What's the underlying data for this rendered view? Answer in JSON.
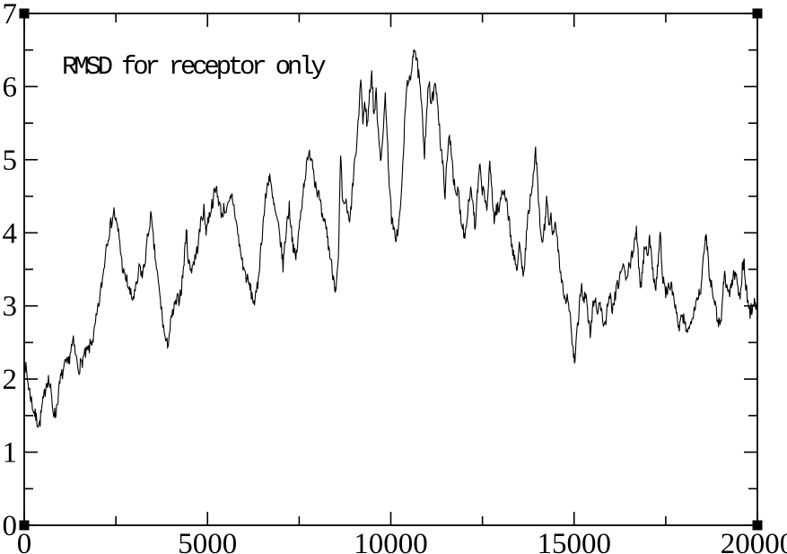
{
  "window": {
    "background": "#ffffff"
  },
  "chart_data": {
    "type": "line",
    "title": "",
    "annotation": "RMSD for receptor only",
    "xlabel": "",
    "ylabel": "",
    "xlim": [
      0,
      20000
    ],
    "ylim": [
      0,
      7
    ],
    "grid": false,
    "legend": null,
    "axes_mirrored_ticks_inward": true,
    "x_major_ticks": [
      0,
      5000,
      10000,
      15000,
      20000
    ],
    "x_minor_ticks": [
      2500,
      7500,
      12500,
      17500
    ],
    "x_tick_labels": [
      "0",
      "5000",
      "10000",
      "15000",
      "20000"
    ],
    "y_major_ticks": [
      0,
      1,
      2,
      3,
      4,
      5,
      6,
      7
    ],
    "y_minor_ticks": [
      0.5,
      1.5,
      2.5,
      3.5,
      4.5,
      5.5,
      6.5
    ],
    "y_tick_labels": [
      "0",
      "1",
      "2",
      "3",
      "4",
      "5",
      "6",
      "7"
    ],
    "colors": {
      "line": "#000000",
      "axis": "#000000",
      "text": "#000000",
      "handle": "#000000"
    },
    "render_noise": {
      "amplitude": 0.1,
      "points_per_segment": 4,
      "seed": 7
    },
    "series": [
      {
        "name": "rmsd",
        "color": "#000000",
        "x": [
          0,
          60,
          120,
          180,
          240,
          300,
          360,
          420,
          480,
          540,
          600,
          660,
          720,
          780,
          850,
          920,
          990,
          1060,
          1130,
          1200,
          1270,
          1340,
          1410,
          1480,
          1550,
          1620,
          1690,
          1760,
          1830,
          1900,
          1960,
          2030,
          2100,
          2170,
          2240,
          2310,
          2380,
          2450,
          2520,
          2590,
          2660,
          2730,
          2800,
          2870,
          2940,
          3010,
          3080,
          3150,
          3220,
          3290,
          3360,
          3450,
          3520,
          3590,
          3660,
          3730,
          3800,
          3880,
          3940,
          4010,
          4080,
          4150,
          4220,
          4290,
          4360,
          4420,
          4480,
          4550,
          4620,
          4690,
          4760,
          4830,
          4900,
          4960,
          5030,
          5100,
          5170,
          5250,
          5320,
          5390,
          5460,
          5530,
          5600,
          5670,
          5740,
          5810,
          5880,
          5950,
          6020,
          6090,
          6160,
          6230,
          6300,
          6370,
          6440,
          6510,
          6580,
          6650,
          6700,
          6760,
          6820,
          6880,
          6940,
          7000,
          7060,
          7120,
          7180,
          7230,
          7290,
          7350,
          7410,
          7470,
          7530,
          7590,
          7650,
          7720,
          7800,
          7860,
          7920,
          7980,
          8040,
          8100,
          8160,
          8220,
          8280,
          8340,
          8400,
          8470,
          8510,
          8570,
          8630,
          8690,
          8750,
          8810,
          8875,
          8940,
          9000,
          9080,
          9180,
          9240,
          9300,
          9360,
          9420,
          9480,
          9540,
          9600,
          9660,
          9720,
          9780,
          9850,
          9900,
          9960,
          10020,
          10080,
          10150,
          10220,
          10300,
          10360,
          10420,
          10480,
          10540,
          10600,
          10650,
          10700,
          10760,
          10820,
          10880,
          10920,
          10980,
          11040,
          11100,
          11160,
          11240,
          11300,
          11360,
          11420,
          11480,
          11540,
          11600,
          11660,
          11720,
          11780,
          11840,
          11900,
          11960,
          12020,
          12100,
          12180,
          12250,
          12300,
          12360,
          12420,
          12480,
          12550,
          12620,
          12700,
          12760,
          12820,
          12880,
          12950,
          13030,
          13100,
          13170,
          13240,
          13310,
          13380,
          13450,
          13520,
          13580,
          13640,
          13700,
          13770,
          13840,
          13900,
          13950,
          14010,
          14070,
          14130,
          14200,
          14250,
          14310,
          14370,
          14430,
          14500,
          14560,
          14620,
          14690,
          14760,
          14830,
          14900,
          14960,
          15010,
          15070,
          15130,
          15190,
          15260,
          15320,
          15380,
          15440,
          15500,
          15570,
          15640,
          15710,
          15780,
          15850,
          15920,
          15990,
          16060,
          16130,
          16200,
          16270,
          16340,
          16410,
          16520,
          16590,
          16660,
          16700,
          16760,
          16820,
          16880,
          16940,
          17000,
          17060,
          17120,
          17180,
          17230,
          17290,
          17350,
          17410,
          17470,
          17530,
          17590,
          17650,
          17710,
          17770,
          17840,
          17900,
          17960,
          18020,
          18080,
          18140,
          18200,
          18260,
          18320,
          18380,
          18440,
          18500,
          18560,
          18600,
          18650,
          18700,
          18760,
          18820,
          18880,
          18940,
          19000,
          19060,
          19110,
          19170,
          19230,
          19290,
          19350,
          19410,
          19470,
          19530,
          19590,
          19640,
          19680,
          19740,
          19800,
          19860,
          19920,
          20000
        ],
        "y": [
          2.25,
          2.1,
          1.9,
          1.75,
          1.6,
          1.5,
          1.42,
          1.38,
          1.6,
          1.75,
          1.95,
          2.0,
          1.85,
          1.6,
          1.5,
          1.75,
          2.0,
          2.1,
          2.2,
          2.2,
          2.4,
          2.5,
          2.3,
          2.15,
          2.2,
          2.3,
          2.35,
          2.4,
          2.5,
          2.6,
          2.8,
          3.0,
          3.25,
          3.5,
          3.85,
          4.0,
          4.15,
          4.3,
          4.1,
          3.95,
          3.6,
          3.4,
          3.35,
          3.2,
          3.1,
          3.15,
          3.3,
          3.55,
          3.4,
          3.6,
          3.9,
          4.25,
          3.9,
          3.6,
          3.3,
          3.0,
          2.7,
          2.45,
          2.55,
          2.8,
          2.95,
          3.05,
          3.1,
          3.25,
          3.6,
          4.05,
          3.6,
          3.5,
          3.6,
          3.7,
          3.9,
          4.2,
          4.3,
          4.05,
          4.2,
          4.35,
          4.5,
          4.6,
          4.4,
          4.25,
          4.35,
          4.3,
          4.4,
          4.5,
          4.3,
          4.05,
          3.8,
          3.6,
          3.45,
          3.35,
          3.25,
          3.1,
          3.05,
          3.3,
          3.7,
          4.1,
          4.45,
          4.7,
          4.8,
          4.5,
          4.35,
          4.2,
          4.05,
          3.85,
          3.55,
          3.9,
          4.2,
          4.35,
          4.05,
          3.75,
          3.65,
          3.9,
          4.2,
          4.5,
          4.75,
          4.95,
          5.1,
          5.0,
          4.75,
          4.6,
          4.5,
          4.3,
          4.1,
          4.15,
          3.9,
          3.7,
          3.5,
          3.3,
          3.25,
          3.6,
          5.05,
          4.35,
          4.45,
          4.3,
          4.1,
          4.5,
          4.9,
          5.2,
          6.15,
          5.5,
          5.8,
          5.45,
          5.9,
          6.2,
          5.6,
          5.9,
          5.4,
          5.05,
          5.2,
          5.95,
          5.3,
          4.7,
          4.2,
          4.0,
          3.95,
          4.1,
          4.6,
          5.3,
          5.9,
          6.15,
          6.0,
          6.45,
          6.57,
          6.35,
          6.15,
          5.85,
          5.4,
          5.1,
          5.7,
          6.05,
          5.75,
          5.9,
          6.0,
          5.65,
          5.2,
          4.9,
          4.55,
          5.0,
          5.35,
          5.1,
          4.7,
          4.45,
          4.6,
          4.25,
          4.1,
          3.95,
          4.35,
          4.6,
          4.4,
          4.0,
          4.5,
          4.9,
          4.65,
          4.5,
          4.35,
          4.9,
          4.6,
          4.15,
          4.35,
          4.3,
          4.55,
          4.6,
          4.4,
          4.1,
          3.8,
          3.6,
          3.5,
          3.9,
          3.6,
          3.4,
          4.0,
          4.35,
          4.5,
          4.8,
          5.15,
          4.6,
          4.1,
          3.85,
          4.1,
          4.5,
          4.05,
          4.2,
          3.95,
          4.1,
          3.85,
          3.5,
          3.3,
          3.05,
          3.15,
          2.8,
          2.45,
          2.2,
          2.55,
          2.9,
          3.3,
          3.1,
          3.15,
          2.85,
          2.6,
          2.95,
          3.1,
          2.95,
          3.05,
          2.8,
          2.75,
          3.0,
          3.1,
          2.95,
          3.15,
          3.3,
          3.45,
          3.55,
          3.35,
          3.55,
          3.7,
          3.95,
          4.0,
          3.6,
          3.25,
          3.6,
          3.85,
          3.75,
          3.9,
          3.6,
          3.4,
          3.25,
          3.6,
          4.0,
          3.4,
          3.25,
          3.15,
          3.3,
          3.25,
          3.15,
          2.95,
          2.7,
          2.75,
          2.85,
          2.75,
          2.7,
          2.65,
          2.85,
          2.95,
          3.05,
          3.15,
          3.2,
          3.45,
          3.8,
          4.0,
          3.7,
          3.4,
          3.25,
          3.15,
          2.9,
          2.8,
          2.75,
          3.2,
          3.45,
          3.25,
          3.15,
          3.3,
          3.4,
          3.45,
          3.25,
          3.15,
          3.5,
          3.6,
          3.25,
          3.1,
          2.9,
          3.0,
          3.05,
          2.95
        ]
      }
    ]
  }
}
